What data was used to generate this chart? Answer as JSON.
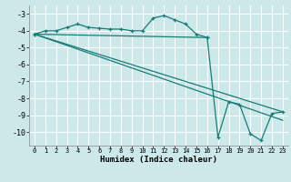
{
  "xlabel": "Humidex (Indice chaleur)",
  "ylabel": "",
  "bg_color": "#cce8e8",
  "grid_color": "#ffffff",
  "line_color": "#1a7a7a",
  "marker": "+",
  "xlim": [
    -0.5,
    23.5
  ],
  "ylim": [
    -10.8,
    -2.5
  ],
  "xticks": [
    0,
    1,
    2,
    3,
    4,
    5,
    6,
    7,
    8,
    9,
    10,
    11,
    12,
    13,
    14,
    15,
    16,
    17,
    18,
    19,
    20,
    21,
    22,
    23
  ],
  "yticks": [
    -10,
    -9,
    -8,
    -7,
    -6,
    -5,
    -4,
    -3
  ],
  "line1_x": [
    0,
    1,
    2,
    3,
    4,
    5,
    6,
    7,
    8,
    9,
    10,
    11,
    12,
    13,
    14,
    15,
    16
  ],
  "line1_y": [
    -4.2,
    -4.0,
    -4.0,
    -3.8,
    -3.6,
    -3.8,
    -3.85,
    -3.9,
    -3.9,
    -4.0,
    -4.0,
    -3.25,
    -3.1,
    -3.35,
    -3.6,
    -4.2,
    -4.4
  ],
  "line2_x": [
    0,
    16,
    17,
    18,
    19,
    20,
    21,
    22,
    23
  ],
  "line2_y": [
    -4.2,
    -4.4,
    -10.3,
    -8.2,
    -8.35,
    -10.1,
    -10.5,
    -8.9,
    -8.8
  ],
  "line3_x": [
    0,
    23
  ],
  "line3_y": [
    -4.2,
    -8.8
  ],
  "line4_x": [
    0,
    23
  ],
  "line4_y": [
    -4.2,
    -9.3
  ]
}
